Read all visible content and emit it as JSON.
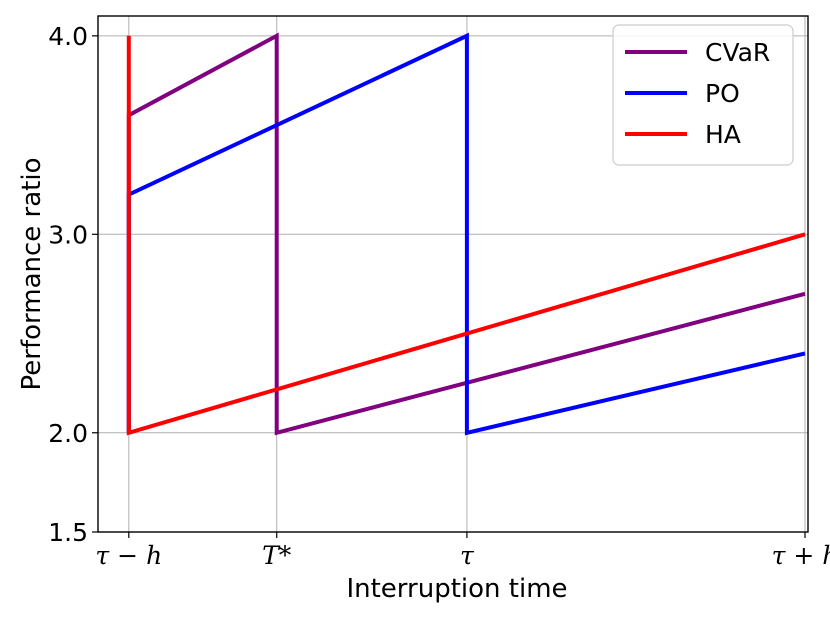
{
  "chart_data": {
    "type": "line",
    "xlabel": "Interruption time",
    "ylabel": "Performance ratio",
    "x_ticks": [
      {
        "value": 0,
        "label": "τ − h"
      },
      {
        "value": 0.4375,
        "label": "T*"
      },
      {
        "value": 1,
        "label": "τ"
      },
      {
        "value": 2,
        "label": "τ + h"
      }
    ],
    "y_ticks": [
      {
        "value": 1.5,
        "label": "1.5"
      },
      {
        "value": 2.0,
        "label": "2.0"
      },
      {
        "value": 3.0,
        "label": "3.0"
      },
      {
        "value": 4.0,
        "label": "4.0"
      }
    ],
    "xlim": [
      -0.1,
      2.0
    ],
    "ylim": [
      1.5,
      4.1
    ],
    "grid": true,
    "legend_position": "top-right",
    "series": [
      {
        "name": "CVaR",
        "color": "#800080",
        "points": [
          [
            0,
            2.0
          ],
          [
            0,
            3.6
          ],
          [
            0.4375,
            4.0
          ],
          [
            0.4375,
            2.0
          ],
          [
            2.0,
            2.7
          ]
        ]
      },
      {
        "name": "PO",
        "color": "#0000ff",
        "points": [
          [
            0,
            2.0
          ],
          [
            0,
            3.2
          ],
          [
            1.0,
            4.0
          ],
          [
            1.0,
            2.0
          ],
          [
            2.0,
            2.4
          ]
        ]
      },
      {
        "name": "HA",
        "color": "#ff0000",
        "points": [
          [
            0,
            4.0
          ],
          [
            0,
            2.0
          ],
          [
            2.0,
            3.0
          ]
        ]
      }
    ]
  }
}
